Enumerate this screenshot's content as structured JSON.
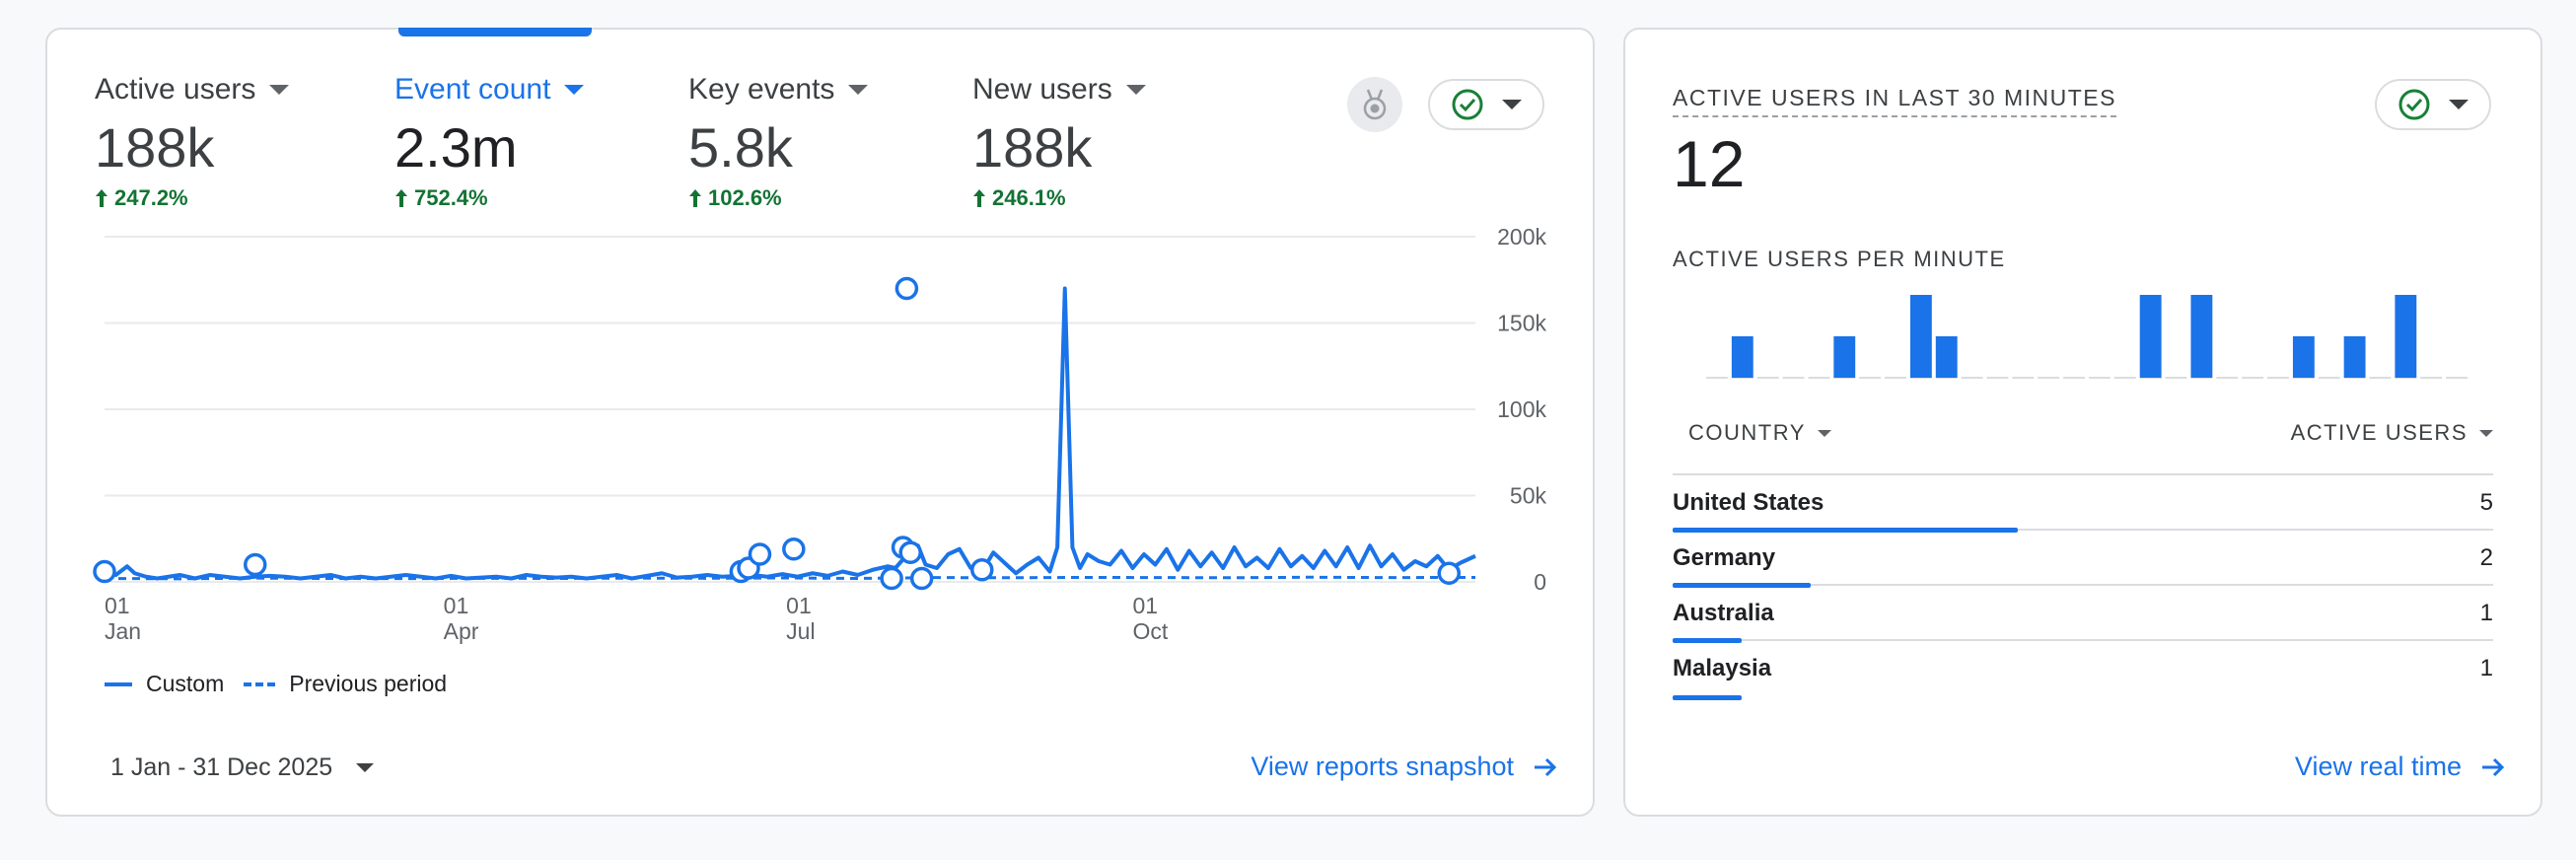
{
  "overview": {
    "metrics": [
      {
        "label": "Active users",
        "value": "188k",
        "change": "247.2%"
      },
      {
        "label": "Event count",
        "value": "2.3m",
        "change": "752.4%"
      },
      {
        "label": "Key events",
        "value": "5.8k",
        "change": "102.6%"
      },
      {
        "label": "New users",
        "value": "188k",
        "change": "246.1%"
      }
    ],
    "selected_metric_index": 1,
    "date_range": "1 Jan - 31 Dec 2025",
    "view_link": "View reports snapshot"
  },
  "chart_data": {
    "type": "line",
    "title": "Event count",
    "y_ticks": [
      "200k",
      "150k",
      "100k",
      "50k",
      "0"
    ],
    "ylim": [
      0,
      200000
    ],
    "xlim": [
      0,
      364
    ],
    "x_ticks": [
      {
        "day": 0,
        "top": "01",
        "bottom": "Jan"
      },
      {
        "day": 90,
        "top": "01",
        "bottom": "Apr"
      },
      {
        "day": 181,
        "top": "01",
        "bottom": "Jul"
      },
      {
        "day": 273,
        "top": "01",
        "bottom": "Oct"
      }
    ],
    "legend": [
      "Custom",
      "Previous period"
    ],
    "series": [
      {
        "name": "Custom",
        "style": "solid",
        "x": [
          0,
          3,
          6,
          8,
          11,
          14,
          17,
          20,
          24,
          28,
          32,
          36,
          40,
          44,
          48,
          52,
          56,
          60,
          64,
          68,
          72,
          76,
          80,
          84,
          88,
          92,
          96,
          100,
          104,
          108,
          112,
          116,
          120,
          124,
          128,
          132,
          136,
          140,
          144,
          148,
          152,
          156,
          160,
          164,
          168,
          172,
          176,
          180,
          184,
          188,
          192,
          196,
          200,
          204,
          208,
          210,
          212,
          214,
          216,
          218,
          221,
          224,
          227,
          230,
          233,
          236,
          239,
          242,
          245,
          248,
          251,
          253,
          255,
          257,
          259,
          261,
          264,
          267,
          270,
          273,
          276,
          279,
          282,
          285,
          288,
          291,
          294,
          297,
          300,
          303,
          306,
          309,
          312,
          315,
          318,
          321,
          324,
          327,
          330,
          333,
          336,
          339,
          342,
          345,
          348,
          351,
          354,
          357,
          360,
          364
        ],
        "y": [
          6000,
          4000,
          9000,
          5000,
          3000,
          2000,
          3000,
          4000,
          2000,
          4000,
          3000,
          2000,
          3000,
          3500,
          3000,
          2000,
          3000,
          4000,
          2000,
          3000,
          2000,
          3000,
          4000,
          3000,
          2000,
          3500,
          2000,
          2500,
          3000,
          2000,
          4000,
          3000,
          2500,
          3000,
          2000,
          3000,
          4000,
          2000,
          3500,
          5000,
          2500,
          3000,
          4000,
          3000,
          3500,
          4000,
          3000,
          4500,
          3000,
          5000,
          3500,
          6000,
          4000,
          7000,
          9000,
          8000,
          13000,
          16000,
          21000,
          10000,
          8000,
          16000,
          19000,
          8000,
          6000,
          17000,
          11000,
          5000,
          10000,
          14000,
          6000,
          20000,
          170000,
          20000,
          8000,
          16000,
          12000,
          10000,
          18000,
          8000,
          16000,
          10000,
          19000,
          7000,
          18000,
          9000,
          17000,
          8000,
          20000,
          9000,
          14000,
          8000,
          19000,
          9000,
          15000,
          8000,
          18000,
          9000,
          20000,
          8000,
          21000,
          9000,
          16000,
          7000,
          12000,
          9000,
          15000,
          7000,
          11000,
          15000
        ],
        "markers_x": [
          0,
          40,
          169,
          171,
          174,
          183,
          209,
          212,
          213,
          214,
          217,
          233,
          357
        ],
        "markers_y": [
          6000,
          10000,
          6000,
          8000,
          16000,
          19000,
          2000,
          20000,
          170000,
          17000,
          2000,
          7000,
          5000
        ]
      },
      {
        "name": "Previous period",
        "style": "dashed",
        "x": [
          0,
          20,
          40,
          60,
          80,
          100,
          120,
          140,
          160,
          180,
          200,
          220,
          240,
          260,
          280,
          300,
          320,
          340,
          364
        ],
        "y": [
          2000,
          1800,
          2200,
          2000,
          1900,
          2100,
          2000,
          2200,
          2100,
          2300,
          2000,
          2500,
          2400,
          2600,
          2500,
          2400,
          2700,
          2500,
          2600
        ]
      }
    ]
  },
  "realtime": {
    "title": "ACTIVE USERS IN LAST 30 MINUTES",
    "value": "12",
    "per_minute_label": "ACTIVE USERS PER MINUTE",
    "per_minute": [
      0,
      1,
      0,
      0,
      0,
      1,
      0,
      0,
      2,
      1,
      0,
      0,
      0,
      0,
      0,
      0,
      0,
      2,
      0,
      2,
      0,
      0,
      0,
      1,
      0,
      1,
      0,
      2,
      0,
      0
    ],
    "col_country": "COUNTRY",
    "col_users": "ACTIVE USERS",
    "rows": [
      {
        "country": "United States",
        "users": "5",
        "share": 1.0
      },
      {
        "country": "Germany",
        "users": "2",
        "share": 0.4
      },
      {
        "country": "Australia",
        "users": "1",
        "share": 0.2
      },
      {
        "country": "Malaysia",
        "users": "1",
        "share": 0.2
      }
    ],
    "view_link": "View real time"
  },
  "colors": {
    "accent": "#1a73e8",
    "positive": "#137333",
    "check": "#188038",
    "gridline": "#e8eaed"
  }
}
